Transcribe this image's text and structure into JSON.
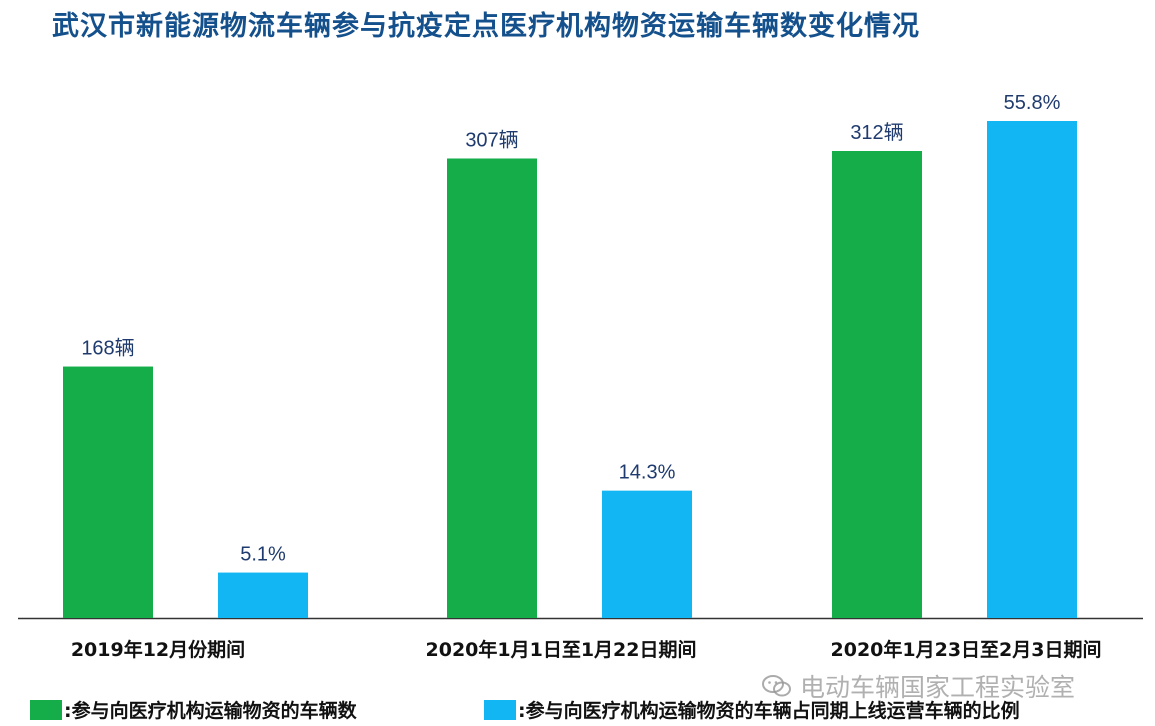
{
  "title": "武汉市新能源物流车辆参与抗疫定点医疗机构物资运输车辆数变化情况",
  "colors": {
    "green": "#14ad4a",
    "blue": "#12b6f2",
    "title": "#14508c",
    "axis": "#333333"
  },
  "chart_data": {
    "type": "bar",
    "categories": [
      "2019年12月份期间",
      "2020年1月1日至1月22日期间",
      "2020年1月23日至2月3日期间"
    ],
    "series": [
      {
        "name": ":参与向医疗机构运输物资的车辆数",
        "values": [
          168,
          307,
          312
        ],
        "labels": [
          "168辆",
          "307辆",
          "312辆"
        ],
        "color": "#14ad4a"
      },
      {
        "name": ":参与向医疗机构运输物资的车辆占同期上线运营车辆的比例",
        "values": [
          5.1,
          14.3,
          55.8
        ],
        "labels": [
          "5.1%",
          "14.3%",
          "55.8%"
        ],
        "color": "#12b6f2"
      }
    ],
    "legend_position": "bottom",
    "grid": false
  },
  "watermark": {
    "text": "电动车辆国家工程实验室",
    "icon": "wechat-icon"
  }
}
